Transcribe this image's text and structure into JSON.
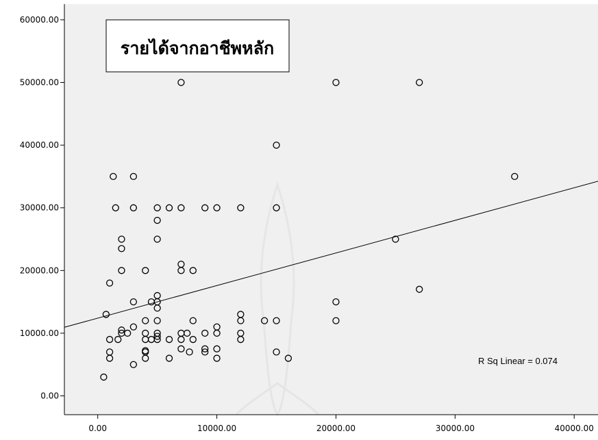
{
  "chart_data": {
    "type": "scatter",
    "title": "รายได้จากอาชีพหลัก",
    "xlabel": "",
    "ylabel": "",
    "xlim": [
      -2800,
      42000
    ],
    "ylim": [
      -3000,
      62500
    ],
    "x_ticks": [
      0,
      10000,
      20000,
      30000,
      40000
    ],
    "x_tick_labels": [
      "0.00",
      "10000.00",
      "20000.00",
      "30000.00",
      "40000.00"
    ],
    "y_ticks": [
      0,
      10000,
      20000,
      30000,
      40000,
      50000,
      60000
    ],
    "y_tick_labels": [
      "0.00",
      "10000.00",
      "20000.00",
      "30000.00",
      "40000.00",
      "50000.00",
      "60000.00"
    ],
    "grid": false,
    "marker": "open-circle",
    "colors": {
      "background": "#f0f0f0",
      "marker": "#000000",
      "line": "#000000"
    },
    "fit_line": {
      "type": "linear",
      "intercept": 12400,
      "slope": 0.52
    },
    "r_squared_label": "R Sq Linear = 0.074",
    "points": [
      [
        500,
        3000
      ],
      [
        700,
        13000
      ],
      [
        1000,
        9000
      ],
      [
        1000,
        7000
      ],
      [
        1000,
        6000
      ],
      [
        1000,
        18000
      ],
      [
        1300,
        35000
      ],
      [
        1500,
        30000
      ],
      [
        1700,
        9000
      ],
      [
        2000,
        25000
      ],
      [
        2000,
        23500
      ],
      [
        2000,
        20000
      ],
      [
        2000,
        10500
      ],
      [
        2000,
        10000
      ],
      [
        2500,
        10000
      ],
      [
        3000,
        35000
      ],
      [
        3000,
        30000
      ],
      [
        3000,
        15000
      ],
      [
        3000,
        11000
      ],
      [
        3000,
        5000
      ],
      [
        4000,
        20000
      ],
      [
        4000,
        12000
      ],
      [
        4000,
        10000
      ],
      [
        4000,
        9000
      ],
      [
        4000,
        7200
      ],
      [
        4000,
        7000
      ],
      [
        4000,
        6000
      ],
      [
        4500,
        15000
      ],
      [
        4500,
        9000
      ],
      [
        5000,
        30000
      ],
      [
        5000,
        28000
      ],
      [
        5000,
        25000
      ],
      [
        5000,
        16000
      ],
      [
        5000,
        15000
      ],
      [
        5000,
        14000
      ],
      [
        5000,
        12000
      ],
      [
        5000,
        10000
      ],
      [
        5000,
        9500
      ],
      [
        5000,
        9000
      ],
      [
        6000,
        30000
      ],
      [
        6000,
        9000
      ],
      [
        6000,
        6000
      ],
      [
        7000,
        50000
      ],
      [
        7000,
        30000
      ],
      [
        7000,
        21000
      ],
      [
        7000,
        20000
      ],
      [
        7000,
        10000
      ],
      [
        7000,
        9000
      ],
      [
        7000,
        7500
      ],
      [
        7500,
        10000
      ],
      [
        7700,
        7000
      ],
      [
        8000,
        20000
      ],
      [
        8000,
        12000
      ],
      [
        8000,
        9000
      ],
      [
        9000,
        30000
      ],
      [
        9000,
        10000
      ],
      [
        9000,
        7500
      ],
      [
        9000,
        7000
      ],
      [
        10000,
        30000
      ],
      [
        10000,
        11000
      ],
      [
        10000,
        10000
      ],
      [
        10000,
        7500
      ],
      [
        10000,
        6000
      ],
      [
        12000,
        30000
      ],
      [
        12000,
        13000
      ],
      [
        12000,
        12000
      ],
      [
        12000,
        10000
      ],
      [
        12000,
        9000
      ],
      [
        14000,
        12000
      ],
      [
        15000,
        40000
      ],
      [
        15000,
        30000
      ],
      [
        15000,
        12000
      ],
      [
        15000,
        7000
      ],
      [
        16000,
        6000
      ],
      [
        20000,
        50000
      ],
      [
        20000,
        15000
      ],
      [
        20000,
        12000
      ],
      [
        25000,
        25000
      ],
      [
        27000,
        50000
      ],
      [
        27000,
        17000
      ],
      [
        35000,
        35000
      ]
    ]
  }
}
